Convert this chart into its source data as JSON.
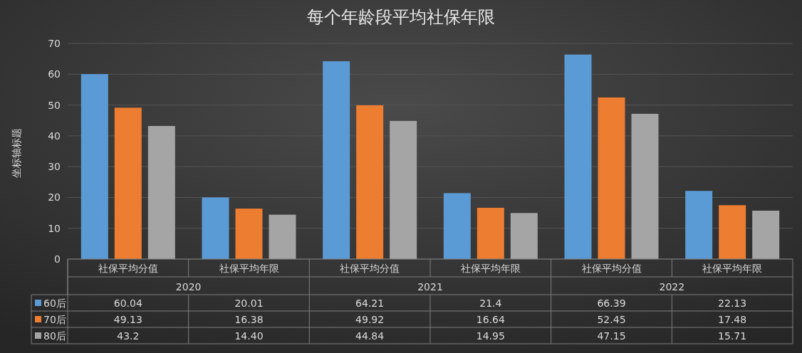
{
  "chart_data": {
    "type": "bar",
    "title": "每个年龄段平均社保年限",
    "ylabel": "坐标轴标题",
    "categories": [
      "社保平均分值",
      "社保平均年限",
      "社保平均分值",
      "社保平均年限",
      "社保平均分值",
      "社保平均年限"
    ],
    "annotations": [
      "2020",
      "2021",
      "2022"
    ],
    "series": [
      {
        "name": "60后",
        "color": "#5b9bd5",
        "values": [
          60.04,
          20.01,
          64.21,
          21.4,
          66.39,
          22.13
        ],
        "value_labels": [
          "60.04",
          "20.01",
          "64.21",
          "21.4",
          "66.39",
          "22.13"
        ]
      },
      {
        "name": "70后",
        "color": "#ed7d31",
        "values": [
          49.13,
          16.38,
          49.92,
          16.64,
          52.45,
          17.48
        ],
        "value_labels": [
          "49.13",
          "16.38",
          "49.92",
          "16.64",
          "52.45",
          "17.48"
        ]
      },
      {
        "name": "80后",
        "color": "#a5a5a5",
        "values": [
          43.2,
          14.4,
          44.84,
          14.95,
          47.15,
          15.71
        ],
        "value_labels": [
          "43.2",
          "14.40",
          "44.84",
          "14.95",
          "47.15",
          "15.71"
        ]
      }
    ],
    "ylim": [
      0,
      70
    ],
    "yticks": [
      0,
      10,
      20,
      30,
      40,
      50,
      60,
      70
    ],
    "grid": "y",
    "legend": "bottom"
  }
}
